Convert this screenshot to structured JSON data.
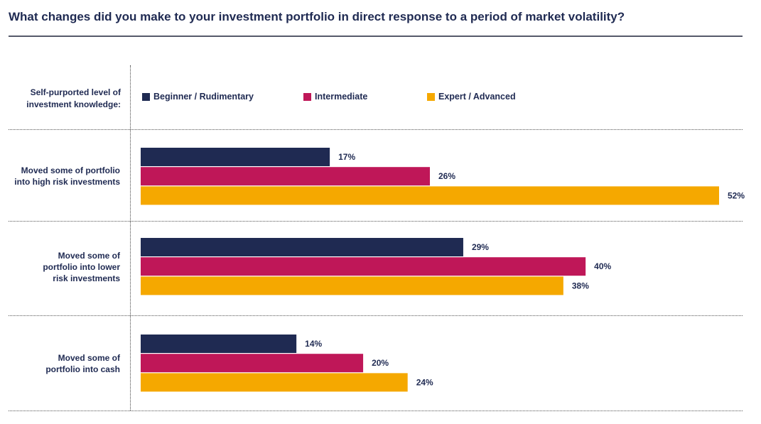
{
  "title": "What changes did you make to your investment portfolio in direct response to a period of market volatility?",
  "legend_label": "Self-purported level of investment knowledge:",
  "chart_data": {
    "type": "bar",
    "orientation": "horizontal",
    "title": "What changes did you make to your investment portfolio in direct response to a period of market volatility?",
    "categories": [
      "Moved some of portfolio into high risk investments",
      "Moved some of portfolio into lower risk investments",
      "Moved some of portfolio into cash"
    ],
    "category_lines": [
      [
        "Moved some of portfolio",
        "into high risk investments"
      ],
      [
        "Moved some of",
        "portfolio into lower",
        "risk investments"
      ],
      [
        "Moved some of",
        "portfolio into cash"
      ]
    ],
    "series": [
      {
        "name": "Beginner / Rudimentary",
        "color": "#1f2a52",
        "values": [
          17,
          29,
          14
        ]
      },
      {
        "name": "Intermediate",
        "color": "#bf1758",
        "values": [
          26,
          40,
          20
        ]
      },
      {
        "name": "Expert / Advanced",
        "color": "#f5a800",
        "values": [
          52,
          38,
          24
        ]
      }
    ],
    "value_suffix": "%",
    "xlim": [
      0,
      52
    ],
    "legend_position": "top"
  }
}
